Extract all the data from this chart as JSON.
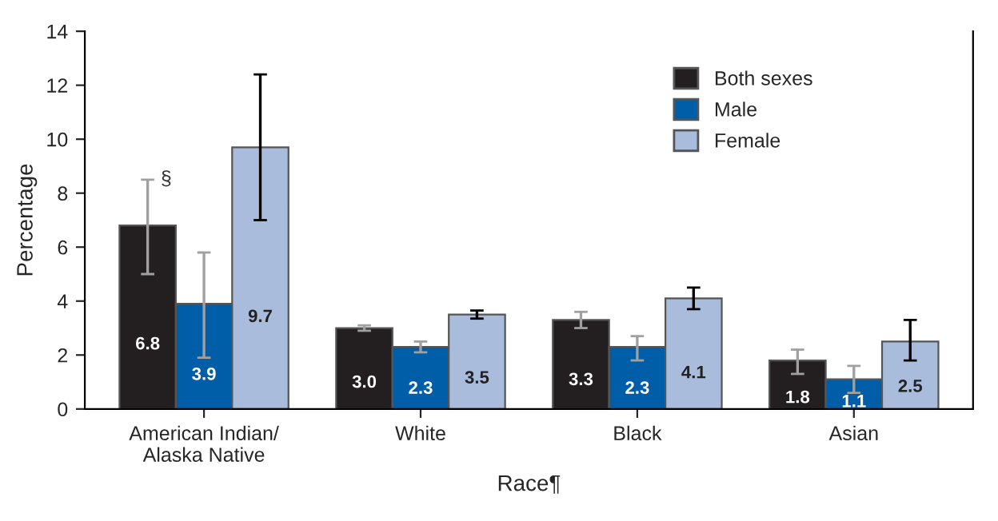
{
  "chart_data": {
    "type": "bar",
    "xlabel": "Race¶",
    "ylabel": "Percentage",
    "categories": [
      "American Indian/\nAlaska Native",
      "White",
      "Black",
      "Asian"
    ],
    "series": [
      {
        "name": "Both sexes",
        "color": "#231f20",
        "values": [
          6.8,
          3.0,
          3.3,
          1.8
        ],
        "value_labels": [
          "6.8",
          "3.0",
          "3.3",
          "1.8"
        ],
        "errors": [
          [
            5.0,
            8.5
          ],
          [
            2.9,
            3.1
          ],
          [
            3.0,
            3.6
          ],
          [
            1.3,
            2.2
          ]
        ]
      },
      {
        "name": "Male",
        "color": "#005ea8",
        "values": [
          3.9,
          2.3,
          2.3,
          1.1
        ],
        "value_labels": [
          "3.9",
          "2.3",
          "2.3",
          "1.1"
        ],
        "errors": [
          [
            1.9,
            5.8
          ],
          [
            2.1,
            2.5
          ],
          [
            1.8,
            2.7
          ],
          [
            0.6,
            1.6
          ]
        ]
      },
      {
        "name": "Female",
        "color": "#a9bcdc",
        "values": [
          9.7,
          3.5,
          4.1,
          2.5
        ],
        "value_labels": [
          "9.7",
          "3.5",
          "4.1",
          "2.5"
        ],
        "errors": [
          [
            7.0,
            12.4
          ],
          [
            3.35,
            3.65
          ],
          [
            3.7,
            4.5
          ],
          [
            1.8,
            3.3
          ]
        ]
      }
    ],
    "annotations": [
      "§"
    ],
    "ylim": [
      0,
      14
    ],
    "yticks": [
      0,
      2,
      4,
      6,
      8,
      10,
      12,
      14
    ],
    "legend": "top right",
    "grid": false
  }
}
